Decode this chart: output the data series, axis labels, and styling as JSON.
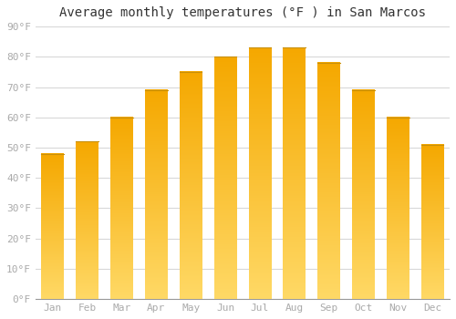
{
  "title": "Average monthly temperatures (°F ) in San Marcos",
  "months": [
    "Jan",
    "Feb",
    "Mar",
    "Apr",
    "May",
    "Jun",
    "Jul",
    "Aug",
    "Sep",
    "Oct",
    "Nov",
    "Dec"
  ],
  "values": [
    48,
    52,
    60,
    69,
    75,
    80,
    83,
    83,
    78,
    69,
    60,
    51
  ],
  "bar_color_top": "#F5A800",
  "bar_color_bottom": "#FFD966",
  "ylim": [
    0,
    90
  ],
  "yticks": [
    0,
    10,
    20,
    30,
    40,
    50,
    60,
    70,
    80,
    90
  ],
  "ytick_labels": [
    "0°F",
    "10°F",
    "20°F",
    "30°F",
    "40°F",
    "50°F",
    "60°F",
    "70°F",
    "80°F",
    "90°F"
  ],
  "background_color": "#ffffff",
  "grid_color": "#d8d8d8",
  "title_fontsize": 10,
  "tick_fontsize": 8,
  "tick_color": "#aaaaaa",
  "bar_edge_top_color": "#C8900A",
  "bar_width": 0.65
}
